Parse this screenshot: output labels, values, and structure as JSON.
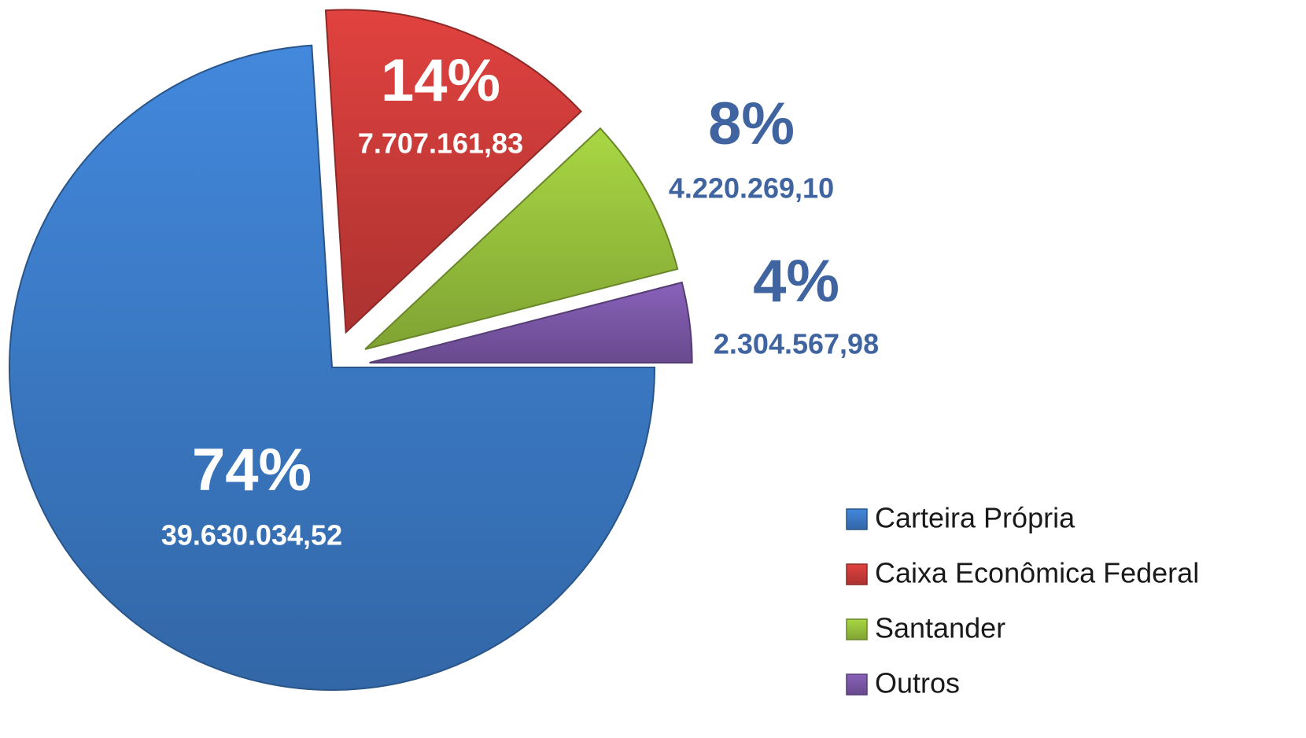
{
  "chart_data": {
    "type": "pie",
    "categories": [
      "Carteira Própria",
      "Caixa Econômica Federal",
      "Santander",
      "Outros"
    ],
    "values": [
      74,
      14,
      8,
      4
    ],
    "value_labels": [
      "74%",
      "14%",
      "8%",
      "4%"
    ],
    "amounts": [
      39630034.52,
      7707161.83,
      4220269.1,
      2304567.98
    ],
    "amount_labels": [
      "39.630.034,52",
      "7.707.161,83",
      "4.220.269,10",
      "2.304.567,98"
    ],
    "colors": [
      "#3b79c4",
      "#c93b38",
      "#96c03c",
      "#7a57a6"
    ],
    "legend": "right"
  }
}
